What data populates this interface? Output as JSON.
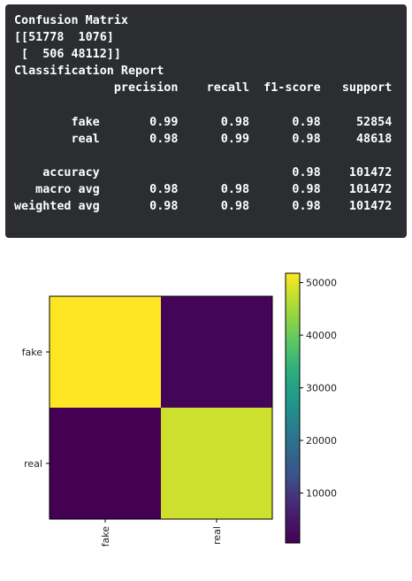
{
  "console": {
    "lines": [
      "Confusion Matrix",
      "[[51778  1076]",
      " [  506 48112]]",
      "Classification Report",
      "              precision    recall  f1-score   support",
      "",
      "        fake       0.99      0.98      0.98     52854",
      "        real       0.98      0.99      0.98     48618",
      "",
      "    accuracy                           0.98    101472",
      "   macro avg       0.98      0.98      0.98    101472",
      "weighted avg       0.98      0.98      0.98    101472"
    ]
  },
  "chart_data": {
    "type": "heatmap",
    "rows": [
      "fake",
      "real"
    ],
    "cols": [
      "fake",
      "real"
    ],
    "values": [
      [
        51778,
        1076
      ],
      [
        506,
        48112
      ]
    ],
    "colormap": "viridis",
    "colorbar": {
      "ticks": [
        10000,
        20000,
        30000,
        40000,
        50000
      ],
      "ticklabels": [
        "10000",
        "20000",
        "30000",
        "40000",
        "50000"
      ]
    },
    "xtick_rotation": "vertical"
  }
}
